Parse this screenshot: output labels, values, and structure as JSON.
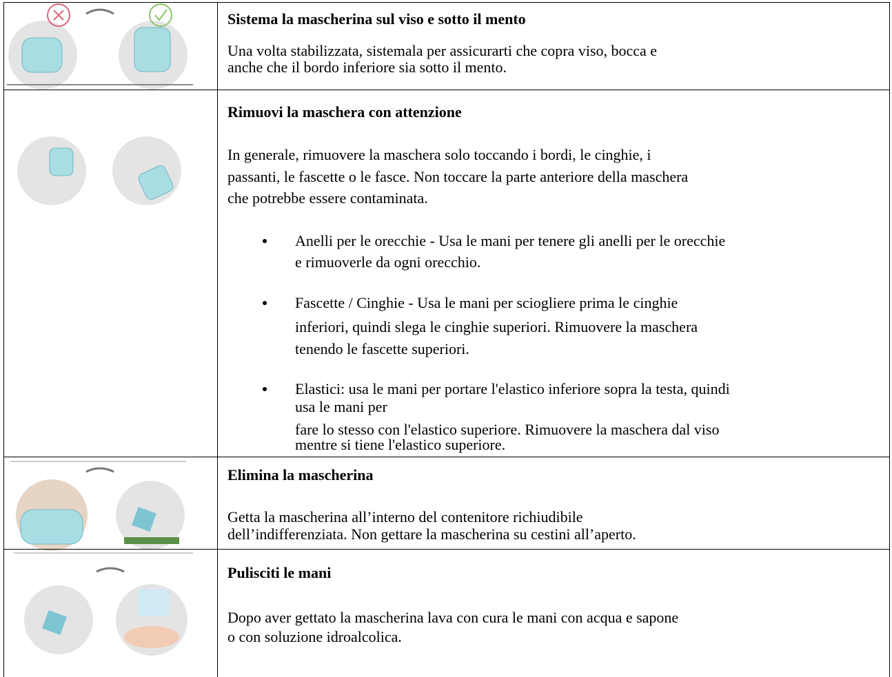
{
  "rows": [
    {
      "title": "Sistema la mascherina sul viso e sotto il mento",
      "paragraph": [
        "Una volta stabilizzata, sistemala per assicurarti che copra viso, bocca e",
        "anche che il bordo inferiore sia sotto il mento."
      ]
    },
    {
      "title": "Rimuovi la maschera con attenzione",
      "paragraph": [
        "In generale, rimuovere la maschera solo toccando i bordi, le cinghie, i",
        "passanti, le fascette o le fasce. Non toccare la parte anteriore della maschera",
        "che potrebbe essere contaminata."
      ],
      "bullets": [
        [
          "Anelli per le orecchie - Usa le mani per tenere gli anelli per le orecchie",
          "e rimuoverle da ogni orecchio."
        ],
        [
          "Fascette / Cinghie - Usa le mani per sciogliere prima le cinghie",
          "inferiori, quindi slega le cinghie superiori. Rimuovere la maschera",
          "tenendo le fascette superiori."
        ],
        [
          "Elastici: usa le mani per portare l'elastico inferiore sopra la testa, quindi",
          "usa le mani per",
          "fare lo stesso con l'elastico superiore. Rimuovere la maschera dal viso",
          "mentre si tiene l'elastico superiore."
        ]
      ]
    },
    {
      "title": "Elimina la mascherina",
      "paragraph": [
        "Getta la mascherina all’interno del contenitore richiudibile",
        "dell’indifferenziata. Non gettare la mascherina su cestini all’aperto."
      ]
    },
    {
      "title": "Pulisciti le mani",
      "paragraph": [
        "Dopo aver gettato la mascherina lava con cura le mani con acqua e sapone",
        "o con soluzione idroalcolica."
      ]
    }
  ]
}
